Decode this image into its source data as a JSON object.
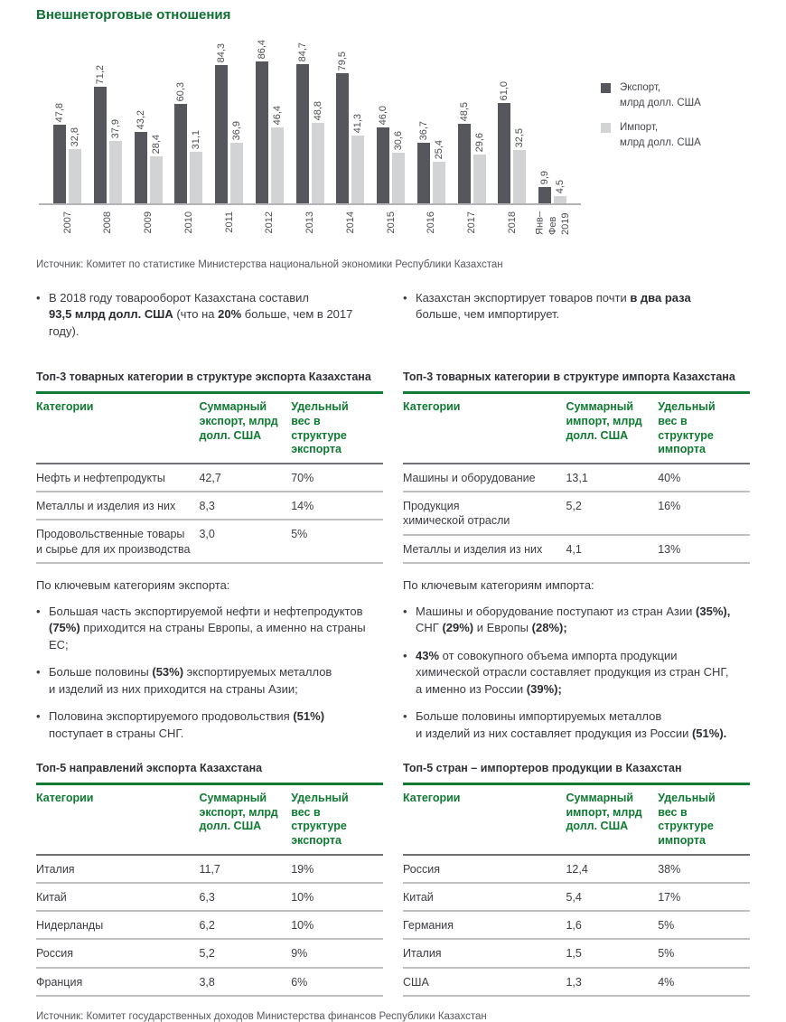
{
  "title": "Внешнеторговые отношения",
  "colors": {
    "export_bar": "#55575c",
    "import_bar": "#d2d3d5",
    "accent_green": "#0f7a31"
  },
  "chart_data": {
    "type": "bar",
    "categories": [
      "2007",
      "2008",
      "2009",
      "2010",
      "2011",
      "2012",
      "2013",
      "2014",
      "2015",
      "2016",
      "2017",
      "2018",
      "Янв–\nФев\n2019"
    ],
    "series": [
      {
        "name": "Экспорт, млрд долл. США",
        "values": [
          47.8,
          71.2,
          43.2,
          60.3,
          84.3,
          86.4,
          84.7,
          79.5,
          46.0,
          36.7,
          48.5,
          61.0,
          9.9
        ]
      },
      {
        "name": "Импорт, млрд долл. США",
        "values": [
          32.8,
          37.9,
          28.4,
          31.1,
          36.9,
          46.4,
          48.8,
          41.3,
          30.6,
          25.4,
          29.6,
          32.5,
          4.5
        ]
      }
    ],
    "legend": [
      {
        "label": "Экспорт,\nмлрд долл. США",
        "color": "#55575c"
      },
      {
        "label": "Импорт,\nмлрд долл. США",
        "color": "#d2d3d5"
      }
    ],
    "ylim": [
      0,
      90
    ],
    "grid": false,
    "legend_position": "right",
    "value_label_format": "one decimal, comma separator, rotated 90°"
  },
  "source_top": "Источник: Комитет по статистике Министерства национальной экономики Республики Казахстан",
  "facts": [
    {
      "text": "В 2018 году товарооборот Казахстана составил\n**93,5 млрд долл. США** (что на **20%** больше, чем в 2017 году)."
    },
    {
      "text": "Казахстан экспортирует товаров почти **в два раза**\nбольше, чем импортирует."
    }
  ],
  "tables": [
    {
      "title": "Топ-3 товарных категории в структуре экспорта Казахстана",
      "headers": [
        "Категории",
        "Суммарный\nэкспорт, млрд\nдолл. США",
        "Удельный\nвес в структуре\nэкспорта"
      ],
      "rows": [
        [
          "Нефть и нефтепродукты",
          "42,7",
          "70%"
        ],
        [
          "Металлы и изделия из них",
          "8,3",
          "14%"
        ],
        [
          "Продовольственные товары\nи сырье для их производства",
          "3,0",
          "5%"
        ]
      ]
    },
    {
      "title": "Топ-3 товарных категории в структуре импорта Казахстана",
      "headers": [
        "Категории",
        "Суммарный\nимпорт, млрд\nдолл. США",
        "Удельный\nвес в структуре\nимпорта"
      ],
      "rows": [
        [
          "Машины и оборудование",
          "13,1",
          "40%"
        ],
        [
          "Продукция\nхимической отрасли",
          "5,2",
          "16%"
        ],
        [
          "Металлы и изделия из них",
          "4,1",
          "13%"
        ]
      ]
    },
    {
      "title": "Топ-5 направлений экспорта Казахстана",
      "headers": [
        "Категории",
        "Суммарный\nэкспорт, млрд\nдолл. США",
        "Удельный\nвес в структуре\nэкспорта"
      ],
      "rows": [
        [
          "Италия",
          "11,7",
          "19%"
        ],
        [
          "Китай",
          "6,3",
          "10%"
        ],
        [
          "Нидерланды",
          "6,2",
          "10%"
        ],
        [
          "Россия",
          "5,2",
          "9%"
        ],
        [
          "Франция",
          "3,8",
          "6%"
        ]
      ]
    },
    {
      "title": "Топ-5 стран – импортеров продукции в Казахстан",
      "headers": [
        "Категории",
        "Суммарный\nимпорт, млрд\nдолл. США",
        "Удельный\nвес в структуре\nимпорта"
      ],
      "rows": [
        [
          "Россия",
          "12,4",
          "38%"
        ],
        [
          "Китай",
          "5,4",
          "17%"
        ],
        [
          "Германия",
          "1,6",
          "5%"
        ],
        [
          "Италия",
          "1,5",
          "5%"
        ],
        [
          "США",
          "1,3",
          "4%"
        ]
      ]
    }
  ],
  "bullet_groups": [
    {
      "intro": "По ключевым категориям экспорта:",
      "items": [
        "Большая часть экспортируемой нефти и нефтепродуктов\n**(75%)** приходится на страны Европы, а именно на страны ЕС;",
        "Больше половины **(53%)** экспортируемых металлов\nи изделий из них приходится на страны Азии;",
        "Половина экспортируемого продовольствия **(51%)**\nпоступает в страны СНГ."
      ]
    },
    {
      "intro": "По ключевым категориям импорта:",
      "items": [
        "Машины и оборудование поступают из стран Азии **(35%),**\nСНГ **(29%)** и Европы **(28%);**",
        "**43%** от совокупного объема импорта продукции\nхимической отрасли составляет продукция из стран СНГ,\nа именно из России **(39%);**",
        "Больше половины импортируемых металлов\nи изделий из них составляет продукция из России **(51%).**"
      ]
    }
  ],
  "source_bottom": "Источник: Комитет государственных доходов Министерства финансов Республики Казахстан"
}
